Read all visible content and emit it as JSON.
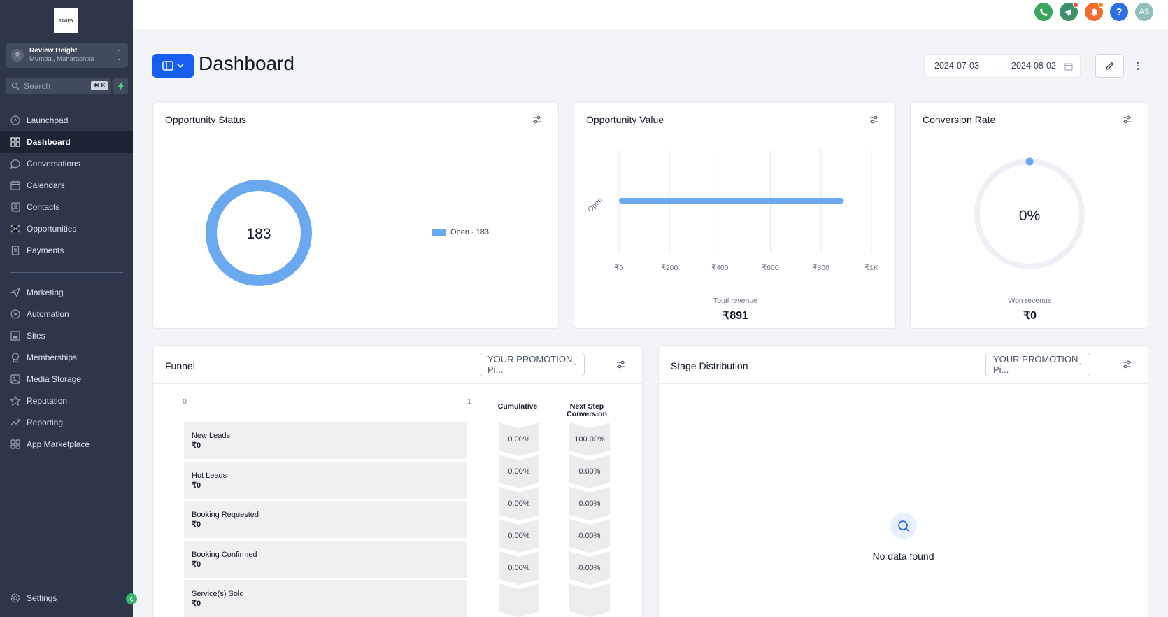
{
  "sidebar": {
    "logo_text": "REVIEW",
    "account": {
      "name": "Review Height",
      "location": "Mumbai, Maharashtra"
    },
    "search": {
      "placeholder": "Search",
      "shortcut": "⌘ K"
    },
    "items": [
      {
        "label": "Launchpad",
        "icon": "rocket-icon"
      },
      {
        "label": "Dashboard",
        "icon": "grid-icon",
        "active": true
      },
      {
        "label": "Conversations",
        "icon": "chat-icon"
      },
      {
        "label": "Calendars",
        "icon": "calendar-icon"
      },
      {
        "label": "Contacts",
        "icon": "contacts-icon"
      },
      {
        "label": "Opportunities",
        "icon": "network-icon"
      },
      {
        "label": "Payments",
        "icon": "receipt-icon"
      }
    ],
    "items2": [
      {
        "label": "Marketing",
        "icon": "send-icon"
      },
      {
        "label": "Automation",
        "icon": "automation-icon"
      },
      {
        "label": "Sites",
        "icon": "sites-icon"
      },
      {
        "label": "Memberships",
        "icon": "badge-icon"
      },
      {
        "label": "Media Storage",
        "icon": "image-icon"
      },
      {
        "label": "Reputation",
        "icon": "star-icon"
      },
      {
        "label": "Reporting",
        "icon": "trend-icon"
      },
      {
        "label": "App Marketplace",
        "icon": "apps-icon"
      }
    ],
    "settings_label": "Settings"
  },
  "topbar": {
    "avatar_initials": "AS",
    "colors": {
      "phone": "#3aa55d",
      "megaphone": "#3f8f6a",
      "bell": "#f26b2b",
      "help": "#2e6fe6",
      "avatar": "#8ebfb8"
    }
  },
  "header": {
    "title": "Dashboard",
    "date_start": "2024-07-03",
    "date_end": "2024-08-02"
  },
  "opportunity_status": {
    "title": "Opportunity Status",
    "total": "183",
    "legend": "Open - 183",
    "color": "#6aa9f0"
  },
  "opportunity_value": {
    "title": "Opportunity Value",
    "footer_label": "Total revenue",
    "footer_value": "₹891",
    "chart_data": {
      "type": "bar",
      "orientation": "horizontal",
      "categories": [
        "Open"
      ],
      "values": [
        891
      ],
      "xlim": [
        0,
        1000
      ],
      "xticks": [
        "₹0",
        "₹200",
        "₹400",
        "₹600",
        "₹800",
        "₹1K"
      ],
      "xlabel": "Total revenue",
      "color": "#6aa9f0"
    }
  },
  "conversion_rate": {
    "title": "Conversion Rate",
    "value": "0%",
    "fraction": 0,
    "footer_label": "Won revenue",
    "footer_value": "₹0"
  },
  "funnel": {
    "title": "Funnel",
    "pipeline": "YOUR PROMOTION Pi...",
    "axis_min": "0",
    "axis_max": "1",
    "col_cumulative": "Cumulative",
    "col_next_1": "Next Step",
    "col_next_2": "Conversion",
    "stages": [
      {
        "name": "New Leads",
        "value": "₹0",
        "cumulative": "0.00%",
        "next": "100.00%"
      },
      {
        "name": "Hot Leads",
        "value": "₹0",
        "cumulative": "0.00%",
        "next": "0.00%"
      },
      {
        "name": "Booking Requested",
        "value": "₹0",
        "cumulative": "0.00%",
        "next": "0.00%"
      },
      {
        "name": "Booking Confirmed",
        "value": "₹0",
        "cumulative": "0.00%",
        "next": "0.00%"
      },
      {
        "name": "Service(s) Sold",
        "value": "₹0",
        "cumulative": "0.00%",
        "next": "0.00%"
      }
    ]
  },
  "stage_distribution": {
    "title": "Stage Distribution",
    "pipeline": "YOUR PROMOTION Pi...",
    "empty_text": "No data found"
  }
}
